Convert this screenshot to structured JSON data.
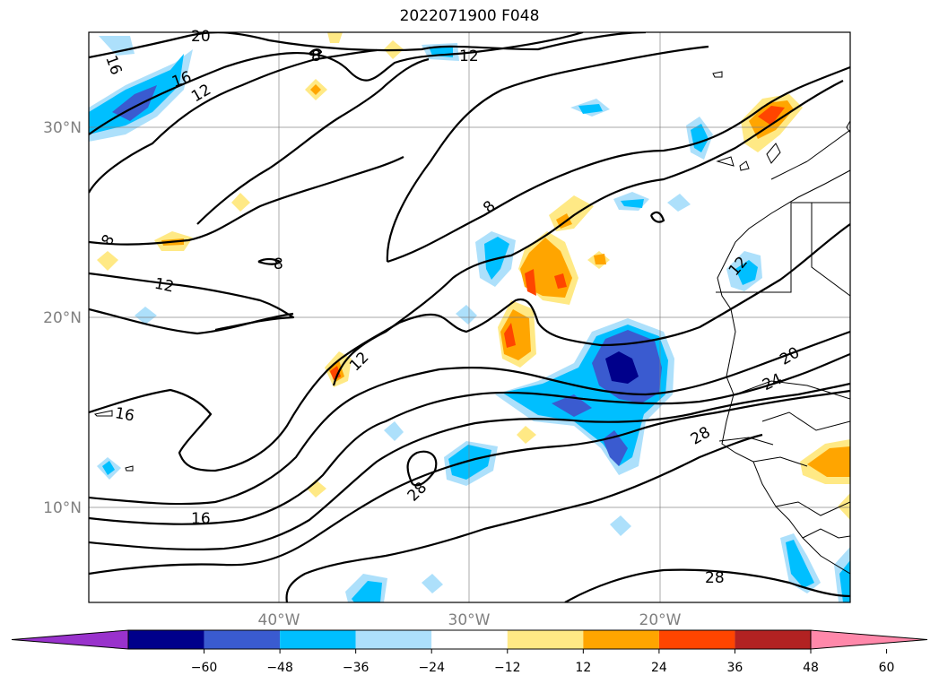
{
  "title": "2022071900 F048",
  "map": {
    "lat_labels": [
      "30°N",
      "20°N",
      "10°N"
    ],
    "lon_labels": [
      "40°W",
      "30°W",
      "20°W"
    ],
    "contour_labels": [
      "20",
      "16",
      "16",
      "12",
      "12",
      "8",
      "8",
      "8",
      "8",
      "12",
      "16",
      "12",
      "12",
      "20",
      "24",
      "28",
      "28",
      "16",
      "28"
    ]
  },
  "colorbar": {
    "ticks": [
      "−60",
      "−48",
      "−36",
      "−24",
      "−12",
      "12",
      "24",
      "36",
      "48",
      "60"
    ],
    "colors": [
      "#9932CC",
      "#00008B",
      "#3A5BD0",
      "#00BFFF",
      "#ADE0FB",
      "#FFFFFF",
      "#FFE985",
      "#FFA500",
      "#FF4500",
      "#B22222",
      "#FF88AA"
    ]
  }
}
